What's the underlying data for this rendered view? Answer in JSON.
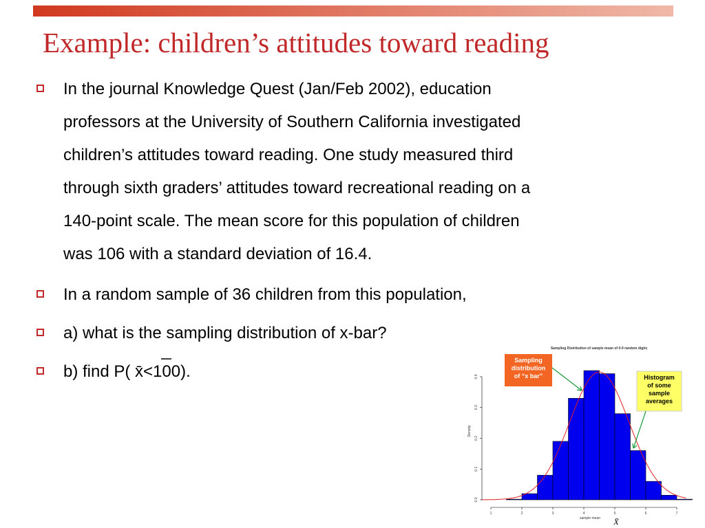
{
  "slide": {
    "title": "Example: children’s attitudes toward reading",
    "bullets": [
      [
        "In the journal Knowledge Quest (Jan/Feb 2002), education",
        "professors at the University of Southern California investigated",
        "children’s attitudes toward reading.  One study measured third",
        "through sixth graders’ attitudes toward recreational reading on a",
        "140-point scale.  The mean score for this population of children",
        "was 106 with a standard deviation of 16.4."
      ],
      [
        "In a random sample of 36 children from this population,"
      ],
      [
        "a) what is the sampling distribution of  x-bar?"
      ],
      [
        "b) find P(  x̄<100)."
      ]
    ]
  },
  "chart_data": {
    "type": "histogram",
    "title": "Sampling Distribution of sample mean of 0-9 random digits",
    "xlabel": "sample mean",
    "xlabel_symbol": "X̄",
    "ylabel": "Density",
    "bins": [
      1.5,
      2,
      2.5,
      3,
      3.5,
      4,
      4.5,
      5,
      5.5,
      6,
      6.5,
      7,
      7.5
    ],
    "values": [
      0.002,
      0.02,
      0.08,
      0.19,
      0.33,
      0.42,
      0.41,
      0.28,
      0.16,
      0.06,
      0.015,
      0.002
    ],
    "color": "#0000ee",
    "xlim": [
      1,
      7
    ],
    "xticks": [
      1,
      2,
      3,
      4,
      5,
      6,
      7
    ],
    "ylim": [
      0,
      0.4
    ],
    "yticks": [
      {
        "value": 0,
        "label": "0.0"
      },
      0.1,
      0.2,
      0.3,
      0.4
    ],
    "density_curve": {
      "mean": 4.5,
      "sd": 0.96,
      "color": "#e02020"
    },
    "annotations": [
      {
        "text": [
          "Sampling",
          "distribution",
          "of “x bar”"
        ],
        "color": "#f26522"
      },
      {
        "text": [
          "Histogram",
          "of some",
          "sample",
          "averages"
        ],
        "color": "#ffff66"
      }
    ]
  }
}
